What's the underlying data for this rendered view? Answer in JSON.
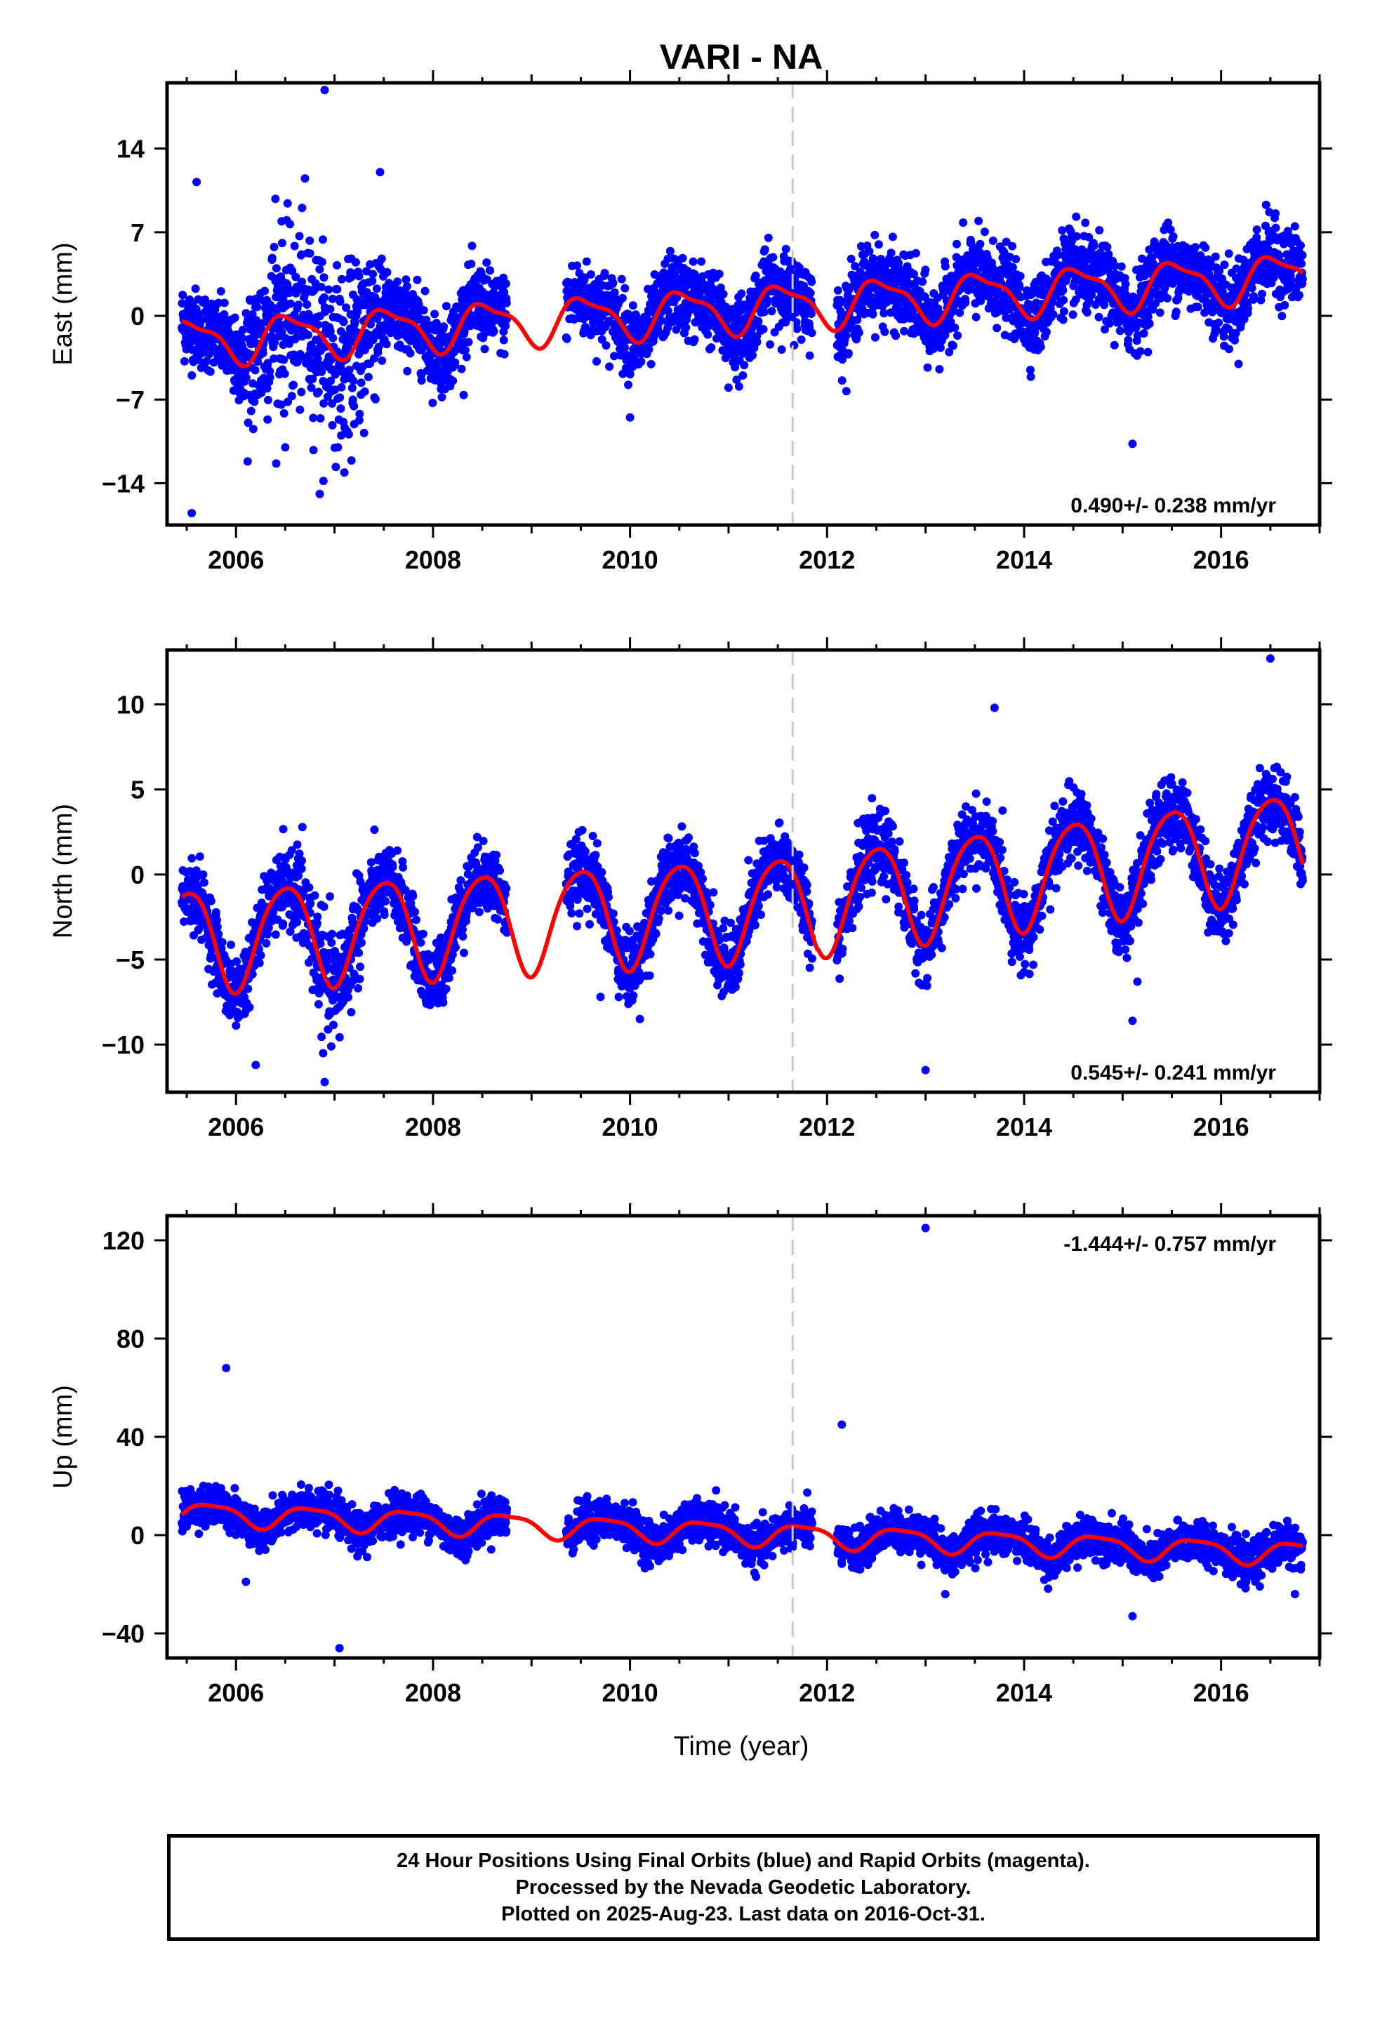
{
  "colors": {
    "final_orbits": "#0000ff",
    "model": "#ff0000",
    "marker_line": "#c8c8c8",
    "frame": "#000000"
  },
  "chart_data": {
    "title": "VARI - NA",
    "type": "scatter",
    "xlabel": "Time (year)",
    "xlim": [
      2005.3,
      2017.0
    ],
    "x_ticks": [
      2006,
      2008,
      2010,
      2012,
      2014,
      2016
    ],
    "vertical_marker_x": 2011.65,
    "grid": false,
    "data_range": [
      2005.45,
      2016.83
    ],
    "panels": [
      {
        "id": "east",
        "ylabel": "East (mm)",
        "ylim": [
          -17.5,
          19.5
        ],
        "y_ticks": [
          -14,
          -7,
          0,
          7,
          14
        ],
        "rate_text": "0.490+/- 0.238 mm/yr",
        "rate_position": "bottom-right",
        "velocity": 0.49,
        "annual_amplitude": 1.8,
        "noise_sd": 1.6
      },
      {
        "id": "north",
        "ylabel": "North (mm)",
        "ylim": [
          -12.8,
          13.2
        ],
        "y_ticks": [
          -10,
          -5,
          0,
          5,
          10
        ],
        "rate_text": "0.545+/- 0.241 mm/yr",
        "rate_position": "bottom-right",
        "velocity": 0.545,
        "annual_amplitude": 3.0,
        "noise_sd": 1.0
      },
      {
        "id": "up",
        "ylabel": "Up (mm)",
        "ylim": [
          -50,
          130
        ],
        "y_ticks": [
          -40,
          0,
          40,
          80,
          120
        ],
        "rate_text": "-1.444+/- 0.757 mm/yr",
        "rate_position": "top-right",
        "velocity": -1.444,
        "annual_amplitude": 4.5,
        "noise_sd": 4.0
      }
    ],
    "data_gaps": [
      [
        2008.75,
        2009.35
      ],
      [
        2011.85,
        2012.1
      ]
    ],
    "outliers": {
      "east": [
        [
          2005.6,
          11.2
        ],
        [
          2005.55,
          -16.5
        ],
        [
          2006.9,
          18.9
        ],
        [
          2006.7,
          11.5
        ],
        [
          2006.4,
          9.8
        ],
        [
          2006.85,
          -14.9
        ],
        [
          2007.1,
          -13.1
        ],
        [
          2007.3,
          -9.8
        ],
        [
          2006.5,
          -11.0
        ],
        [
          2010.0,
          -8.5
        ],
        [
          2015.1,
          -10.7
        ],
        [
          2015.7,
          5.6
        ],
        [
          2011.0,
          -6.0
        ]
      ],
      "north": [
        [
          2006.2,
          -11.2
        ],
        [
          2006.9,
          -12.2
        ],
        [
          2013.0,
          -11.5
        ],
        [
          2015.1,
          -8.6
        ],
        [
          2015.15,
          -6.3
        ],
        [
          2016.5,
          12.7
        ],
        [
          2013.7,
          9.8
        ],
        [
          2010.1,
          -8.5
        ],
        [
          2009.7,
          -7.2
        ]
      ],
      "up": [
        [
          2005.9,
          68
        ],
        [
          2007.05,
          -46
        ],
        [
          2012.15,
          45
        ],
        [
          2013.0,
          125
        ],
        [
          2015.1,
          -33
        ],
        [
          2016.75,
          -24
        ],
        [
          2006.1,
          -19
        ],
        [
          2013.2,
          -24
        ]
      ]
    }
  },
  "footer": {
    "line1": "24 Hour Positions Using Final Orbits (blue) and Rapid Orbits (magenta).",
    "line2": "Processed by the Nevada Geodetic Laboratory.",
    "line3": "Plotted on 2025-Aug-23. Last data on 2016-Oct-31."
  }
}
